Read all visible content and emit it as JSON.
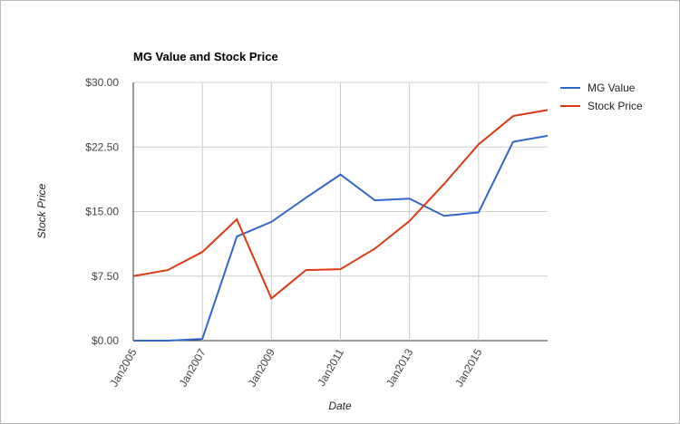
{
  "chart_data": {
    "type": "line",
    "title": "MG Value and Stock Price",
    "x_label": "Date",
    "y_label": "Stock Price",
    "categories": [
      "Jan2005",
      null,
      "Jan2007",
      null,
      "Jan2009",
      null,
      "Jan2011",
      null,
      "Jan2013",
      null,
      "Jan2015",
      null,
      null
    ],
    "series": [
      {
        "name": "MG Value",
        "color": "#3366cc",
        "values": [
          0,
          0,
          0.2,
          12.1,
          13.8,
          16.6,
          19.3,
          16.3,
          16.5,
          14.5,
          14.9,
          23.1,
          23.8
        ]
      },
      {
        "name": "Stock Price",
        "color": "#dc3912",
        "values": [
          7.5,
          8.2,
          10.3,
          14.1,
          4.9,
          8.2,
          8.3,
          10.7,
          13.9,
          18.2,
          22.8,
          26.1,
          26.8
        ]
      }
    ],
    "ylim": [
      0,
      30
    ],
    "yticks": [
      {
        "value": 0,
        "label": "$0.00"
      },
      {
        "value": 7.5,
        "label": "$7.50"
      },
      {
        "value": 15,
        "label": "$15.00"
      },
      {
        "value": 22.5,
        "label": "$22.50"
      },
      {
        "value": 30,
        "label": "$30.00"
      }
    ],
    "grid": true,
    "legend": "right"
  }
}
